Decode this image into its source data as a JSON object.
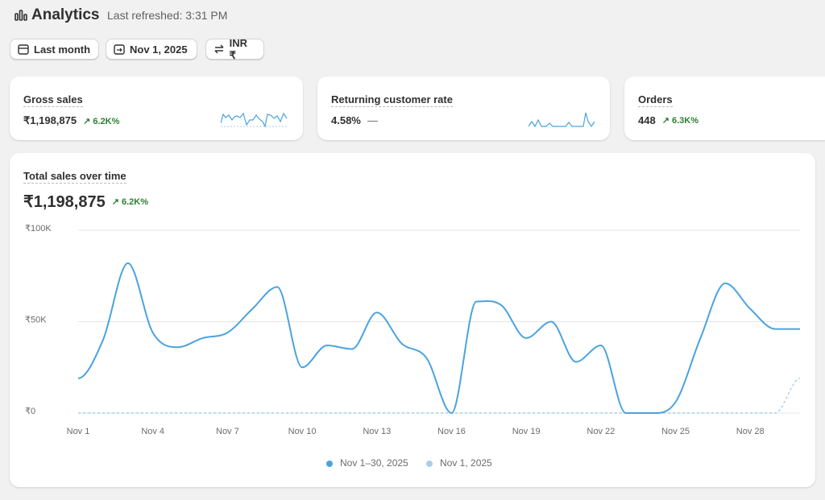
{
  "header": {
    "title": "Analytics",
    "refreshed": "Last refreshed: 3:31 PM"
  },
  "filters": [
    "Last month",
    "Nov 1, 2025",
    "INR ₹"
  ],
  "cards": [
    {
      "title": "Gross sales",
      "value": "₹1,198,875",
      "change": "6.2K%"
    },
    {
      "title": "Returning customer rate",
      "value": "4.58%",
      "change": "—"
    },
    {
      "title": "Orders",
      "value": "448",
      "change": "6.3K%"
    }
  ],
  "chart_data": {
    "type": "line",
    "title": "Total sales over time",
    "total": "₹1,198,875",
    "change": "6.2K%",
    "categories": [
      "Nov 1",
      null,
      null,
      "Nov 4",
      null,
      null,
      "Nov 7",
      null,
      null,
      "Nov 10",
      null,
      null,
      "Nov 13",
      null,
      null,
      "Nov 16",
      null,
      null,
      "Nov 19",
      null,
      null,
      "Nov 22",
      null,
      null,
      "Nov 25",
      null,
      null,
      "Nov 28",
      null,
      null
    ],
    "series": [
      {
        "name": "Nov 1–30, 2025",
        "color": "#4aa3df",
        "dashed": false,
        "values": [
          19000,
          40000,
          82000,
          44000,
          36000,
          41000,
          44000,
          57000,
          69000,
          25000,
          37000,
          35000,
          55000,
          38000,
          30000,
          0,
          61000,
          59000,
          41000,
          50000,
          28000,
          37000,
          0,
          0,
          6000,
          41000,
          71000,
          57000,
          46000,
          46000
        ]
      },
      {
        "name": "Nov 1, 2025",
        "color": "#a8cfee",
        "dashed": true,
        "values": [
          0,
          0,
          0,
          0,
          0,
          0,
          0,
          0,
          0,
          0,
          0,
          0,
          0,
          0,
          0,
          0,
          0,
          0,
          0,
          0,
          0,
          0,
          0,
          0,
          0,
          0,
          0,
          0,
          0,
          19000
        ]
      }
    ],
    "ylim": [
      0,
      100000
    ],
    "yticks": [
      {
        "value": 0,
        "label": "₹0"
      },
      {
        "value": 50000,
        "label": "₹50K"
      },
      {
        "value": 100000,
        "label": "₹100K"
      }
    ],
    "grid": true
  }
}
